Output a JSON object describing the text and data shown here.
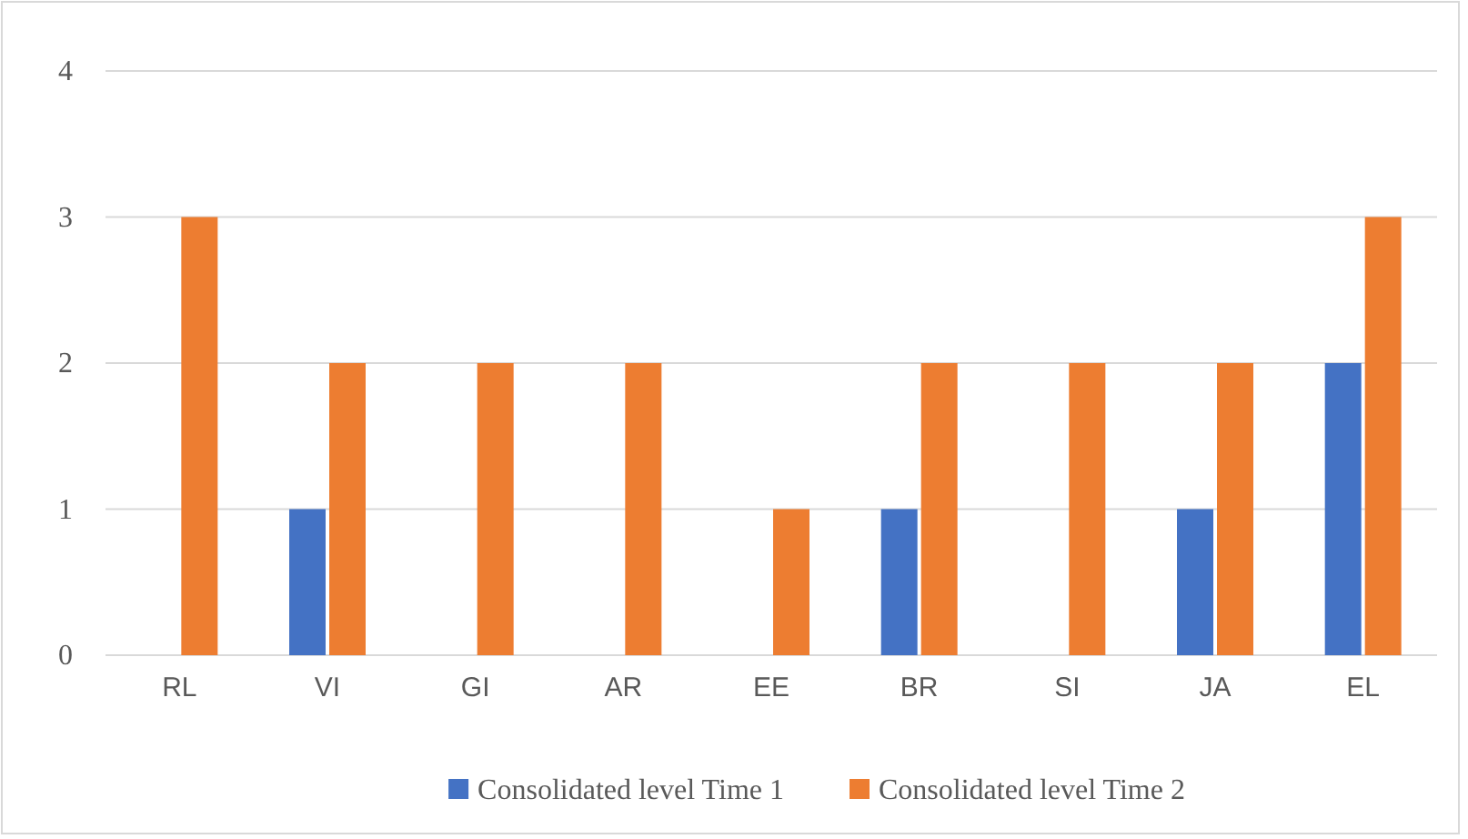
{
  "chart_data": {
    "type": "bar",
    "categories": [
      "RL",
      "VI",
      "GI",
      "AR",
      "EE",
      "BR",
      "SI",
      "JA",
      "EL"
    ],
    "series": [
      {
        "name": "Consolidated level Time 1",
        "color": "#4472c4",
        "values": [
          0,
          1,
          0,
          0,
          0,
          1,
          0,
          1,
          2
        ]
      },
      {
        "name": "Consolidated level Time 2",
        "color": "#ed7d31",
        "values": [
          3,
          2,
          2,
          2,
          1,
          2,
          2,
          2,
          3
        ]
      }
    ],
    "ylim": [
      0,
      4
    ],
    "yticks": [
      0,
      1,
      2,
      3,
      4
    ],
    "grid": "y",
    "legend": "bottom"
  }
}
